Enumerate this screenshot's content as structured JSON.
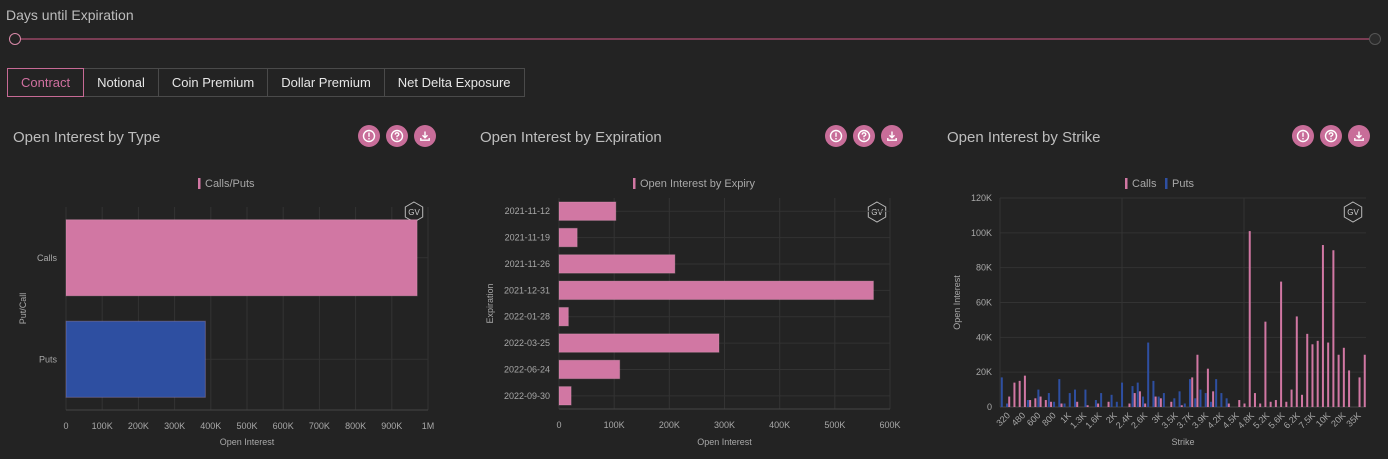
{
  "slider": {
    "label": "Days until Expiration"
  },
  "tabs": [
    {
      "label": "Contract",
      "active": true
    },
    {
      "label": "Notional",
      "active": false
    },
    {
      "label": "Coin Premium",
      "active": false
    },
    {
      "label": "Dollar Premium",
      "active": false
    },
    {
      "label": "Net Delta Exposure",
      "active": false
    }
  ],
  "panels": {
    "type": {
      "title": "Open Interest by Type"
    },
    "expiration": {
      "title": "Open Interest by Expiration"
    },
    "strike": {
      "title": "Open Interest by Strike"
    }
  },
  "icons": [
    "info-icon",
    "help-icon",
    "download-icon"
  ],
  "watermark": "GV",
  "colors": {
    "calls": "#d177a3",
    "puts": "#2e4fa1",
    "accent": "#c86d99"
  },
  "chart_data": [
    {
      "type": "bar",
      "orientation": "horizontal",
      "legend": [
        "Calls/Puts"
      ],
      "categories": [
        "Calls",
        "Puts"
      ],
      "values": [
        970000,
        385000
      ],
      "xlabel": "Open Interest",
      "ylabel": "Put/Call",
      "xlim": [
        0,
        1000000
      ],
      "xticks": [
        "0",
        "100K",
        "200K",
        "300K",
        "400K",
        "500K",
        "600K",
        "700K",
        "800K",
        "900K",
        "1M"
      ]
    },
    {
      "type": "bar",
      "orientation": "horizontal",
      "legend": [
        "Open Interest by Expiry"
      ],
      "categories": [
        "2021-11-12",
        "2021-11-19",
        "2021-11-26",
        "2021-12-31",
        "2022-01-28",
        "2022-03-25",
        "2022-06-24",
        "2022-09-30"
      ],
      "values": [
        103000,
        33000,
        210000,
        570000,
        17000,
        290000,
        110000,
        22000
      ],
      "xlabel": "Open Interest",
      "ylabel": "Expiration",
      "xlim": [
        0,
        600000
      ],
      "xticks": [
        "0",
        "100K",
        "200K",
        "300K",
        "400K",
        "500K",
        "600K"
      ]
    },
    {
      "type": "bar",
      "legend": [
        "Calls",
        "Puts"
      ],
      "xlabel": "Strike",
      "ylabel": "Open Interest",
      "ylim": [
        0,
        120000
      ],
      "yticks": [
        "0",
        "20K",
        "40K",
        "60K",
        "80K",
        "100K",
        "120K"
      ],
      "xticks": [
        "320",
        "480",
        "600",
        "800",
        "1K",
        "1.3K",
        "1.6K",
        "2K",
        "2.4K",
        "2.6K",
        "3K",
        "3.5K",
        "3.7K",
        "3.9K",
        "4.2K",
        "4.5K",
        "4.8K",
        "5.2K",
        "5.6K",
        "6.2K",
        "7.5K",
        "10K",
        "20K",
        "35K"
      ],
      "series": [
        {
          "name": "Calls",
          "values": [
            0,
            6000,
            14000,
            15000,
            18000,
            4000,
            5000,
            6000,
            4000,
            3000,
            0,
            2000,
            0,
            0,
            3000,
            0,
            1000,
            0,
            2000,
            0,
            3000,
            0,
            0,
            0,
            2000,
            8000,
            9000,
            2000,
            0,
            6000,
            5000,
            0,
            3000,
            0,
            1000,
            0,
            17000,
            30000,
            0,
            22000,
            9000,
            0,
            0,
            2000,
            0,
            4000,
            2000,
            101000,
            8000,
            2000,
            49000,
            3000,
            4000,
            72000,
            3000,
            10000,
            52000,
            7000,
            42000,
            36000,
            38000,
            93000,
            37000,
            90000,
            30000,
            34000,
            21000,
            0,
            17000,
            30000
          ]
        },
        {
          "name": "Puts",
          "values": [
            17000,
            2000,
            0,
            0,
            0,
            4000,
            0,
            10000,
            0,
            8000,
            3000,
            16000,
            2000,
            8000,
            10000,
            0,
            10000,
            0,
            4000,
            8000,
            0,
            7000,
            3000,
            14000,
            0,
            12000,
            14000,
            6000,
            37000,
            15000,
            6000,
            8000,
            0,
            5000,
            9000,
            2000,
            16000,
            5000,
            10000,
            8000,
            3000,
            16000,
            8000,
            5000,
            0,
            0,
            0,
            0,
            0,
            0,
            0,
            0,
            0,
            0,
            0,
            0,
            0,
            0,
            0,
            0,
            0,
            0,
            0,
            0,
            0,
            0,
            0,
            0,
            0,
            0
          ]
        }
      ]
    }
  ]
}
